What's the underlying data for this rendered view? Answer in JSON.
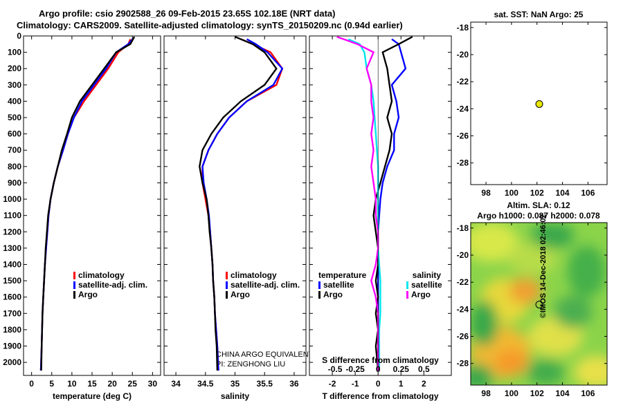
{
  "header": {
    "line1": "Argo profile: csio 2902588_26 09-Feb-2015 23.65S 102.18E (NRT data)",
    "line2": "Climatology: CARS2009. Satellite-adjusted climatology: synTS_20150209.nc (0.94d earlier)"
  },
  "colors": {
    "climatology": "#ff0000",
    "satellite": "#0000ff",
    "argo": "#000000",
    "sal_satellite": "#00e5ee",
    "sal_argo": "#ff00ff",
    "point": "#e8e800"
  },
  "chart_data": [
    {
      "type": "line",
      "id": "temperature",
      "xlabel": "temperature (deg C)",
      "ylabel": "",
      "xlim": [
        -2,
        32
      ],
      "ylim": [
        2080,
        0
      ],
      "xticks": [
        0,
        5,
        10,
        15,
        20,
        25,
        30
      ],
      "yticks": [
        0,
        100,
        200,
        300,
        400,
        500,
        600,
        700,
        800,
        900,
        1000,
        1100,
        1200,
        1300,
        1400,
        1500,
        1600,
        1700,
        1800,
        1900,
        2000
      ],
      "legend": [
        "climatology",
        "satellite-adj. clim.",
        "Argo"
      ],
      "series": [
        {
          "name": "climatology",
          "x": [
            24.5,
            24.0,
            21.5,
            19.0,
            16.0,
            13.0,
            10.5,
            9.0,
            7.8,
            6.5,
            5.5,
            4.7,
            4.2,
            3.9,
            3.6,
            3.3,
            3.1,
            2.9,
            2.7,
            2.6,
            2.5,
            2.3
          ],
          "y": [
            20,
            50,
            100,
            200,
            300,
            400,
            500,
            600,
            700,
            800,
            900,
            1000,
            1100,
            1200,
            1300,
            1400,
            1500,
            1600,
            1700,
            1800,
            1900,
            2050
          ]
        },
        {
          "name": "satellite-adj. clim.",
          "x": [
            25.0,
            24.0,
            21.0,
            18.5,
            15.5,
            12.5,
            10.5,
            9.0,
            7.8,
            6.5,
            5.5,
            4.7,
            4.2,
            3.9,
            3.6,
            3.3,
            3.1,
            2.9,
            2.7,
            2.6,
            2.5,
            2.3
          ],
          "y": [
            20,
            50,
            100,
            200,
            300,
            400,
            500,
            600,
            700,
            800,
            900,
            1000,
            1100,
            1200,
            1300,
            1400,
            1500,
            1600,
            1700,
            1800,
            1900,
            2050
          ]
        },
        {
          "name": "Argo",
          "x": [
            25.5,
            24.5,
            21.0,
            18.0,
            15.0,
            12.0,
            10.0,
            8.8,
            7.5,
            6.5,
            5.5,
            4.7,
            4.1,
            3.8,
            3.5,
            3.3,
            3.1,
            2.9,
            2.7,
            2.6,
            2.5,
            2.4
          ],
          "y": [
            5,
            50,
            100,
            200,
            300,
            400,
            500,
            600,
            700,
            800,
            900,
            1000,
            1100,
            1200,
            1300,
            1400,
            1500,
            1600,
            1700,
            1800,
            1900,
            2050
          ]
        }
      ]
    },
    {
      "type": "line",
      "id": "salinity",
      "xlabel": "salinity",
      "ylabel": "",
      "xlim": [
        33.8,
        36.2
      ],
      "ylim": [
        2080,
        0
      ],
      "xticks": [
        34,
        34.5,
        35,
        35.5,
        36
      ],
      "legend": [
        "climatology",
        "satellite-adj. clim.",
        "Argo"
      ],
      "annotations": [
        "CHINA ARGO EQUIVALENT",
        "PI: ZENGHONG LIU"
      ],
      "series": [
        {
          "name": "climatology",
          "x": [
            35.1,
            35.3,
            35.6,
            35.8,
            35.7,
            35.2,
            34.9,
            34.7,
            34.55,
            34.45,
            34.45,
            34.5,
            34.55,
            34.58,
            34.6,
            34.62,
            34.63,
            34.65,
            34.66,
            34.68,
            34.7,
            34.72
          ],
          "y": [
            20,
            50,
            100,
            200,
            300,
            400,
            500,
            600,
            700,
            800,
            900,
            1000,
            1100,
            1200,
            1300,
            1400,
            1500,
            1600,
            1700,
            1800,
            1900,
            2050
          ]
        },
        {
          "name": "satellite-adj. clim.",
          "x": [
            35.2,
            35.35,
            35.55,
            35.8,
            35.65,
            35.2,
            34.9,
            34.7,
            34.55,
            34.45,
            34.47,
            34.52,
            34.56,
            34.58,
            34.6,
            34.62,
            34.63,
            34.65,
            34.66,
            34.68,
            34.7,
            34.72
          ],
          "y": [
            20,
            50,
            100,
            200,
            300,
            400,
            500,
            600,
            700,
            800,
            900,
            1000,
            1100,
            1200,
            1300,
            1400,
            1500,
            1600,
            1700,
            1800,
            1900,
            2050
          ]
        },
        {
          "name": "Argo",
          "x": [
            35.0,
            35.3,
            35.5,
            35.7,
            35.5,
            35.1,
            34.8,
            34.6,
            34.45,
            34.4,
            34.45,
            34.52,
            34.55,
            34.57,
            34.6,
            34.62,
            34.63,
            34.65,
            34.66,
            34.67,
            34.69,
            34.7
          ],
          "y": [
            5,
            50,
            100,
            200,
            300,
            400,
            500,
            600,
            700,
            800,
            900,
            1000,
            1100,
            1200,
            1300,
            1400,
            1500,
            1600,
            1700,
            1800,
            1900,
            2050
          ]
        }
      ]
    },
    {
      "type": "line",
      "id": "difference",
      "xlabel": "T difference from climatology",
      "x2label": "S difference from climatology",
      "ylabel": "",
      "xlim": [
        -3,
        3.2
      ],
      "ylim": [
        2080,
        0
      ],
      "xticks": [
        -2,
        -1,
        0,
        1,
        2
      ],
      "x2ticks": [
        "-0.5",
        "-0.25",
        "0",
        "0.25",
        "0.5"
      ],
      "legend_groups": [
        {
          "title": "temperature",
          "items": [
            "satellite",
            "Argo"
          ]
        },
        {
          "title": "salinity",
          "items": [
            "satellite",
            "Argo"
          ]
        }
      ],
      "series": [
        {
          "name": "temperature satellite",
          "x": [
            0.6,
            0.9,
            1.0,
            1.2,
            0.6,
            0.8,
            0.9,
            0.7,
            0.7,
            0.4,
            0.2,
            0.1,
            0.05,
            0.0,
            0.0,
            0.0,
            0.0,
            0.0,
            0.0,
            0.0,
            0.0,
            0.0
          ],
          "y": [
            20,
            50,
            100,
            200,
            300,
            400,
            500,
            600,
            700,
            800,
            900,
            1000,
            1100,
            1200,
            1300,
            1400,
            1500,
            1600,
            1700,
            1800,
            1900,
            2050
          ]
        },
        {
          "name": "temperature Argo",
          "x": [
            1.5,
            0.9,
            0.2,
            0.4,
            0.5,
            0.6,
            0.4,
            0.6,
            0.5,
            0.3,
            0.1,
            -0.1,
            -0.2,
            -0.1,
            0.0,
            0.0,
            -0.1,
            0.0,
            -0.1,
            0.0,
            -0.1,
            0.0
          ],
          "y": [
            5,
            50,
            100,
            200,
            300,
            400,
            500,
            600,
            700,
            800,
            900,
            1000,
            1100,
            1200,
            1300,
            1400,
            1500,
            1600,
            1700,
            1800,
            1900,
            2050
          ]
        },
        {
          "name": "salinity satellite",
          "x": [
            -1.3,
            -0.8,
            -0.6,
            -0.5,
            -0.3,
            -0.2,
            -0.15,
            -0.1,
            -0.05,
            0.0,
            0.0,
            0.0,
            0.0,
            0.0,
            0.0,
            0.05,
            0.1,
            0.1,
            0.1,
            0.05,
            0.05,
            0.05
          ],
          "y": [
            20,
            50,
            100,
            200,
            300,
            400,
            500,
            600,
            700,
            800,
            900,
            1000,
            1100,
            1200,
            1300,
            1400,
            1500,
            1600,
            1700,
            1800,
            1900,
            2050
          ]
        },
        {
          "name": "salinity Argo",
          "x": [
            -1.8,
            -0.9,
            -0.2,
            -0.5,
            -0.3,
            -0.3,
            -0.2,
            -0.3,
            -0.2,
            -0.3,
            -0.2,
            -0.1,
            -0.1,
            0.0,
            0.0,
            -0.1,
            -0.3,
            -0.1,
            0.0,
            0.0,
            0.0,
            0.0
          ],
          "y": [
            5,
            50,
            100,
            200,
            300,
            400,
            500,
            600,
            700,
            800,
            900,
            1000,
            1100,
            1200,
            1300,
            1400,
            1500,
            1600,
            1700,
            1800,
            1900,
            2050
          ]
        }
      ]
    },
    {
      "type": "scatter",
      "id": "sst-map",
      "title": "sat. SST: NaN Argo: 25",
      "xlim": [
        96.8,
        107.5
      ],
      "ylim": [
        -29.6,
        -17.6
      ],
      "xticks": [
        98,
        100,
        102,
        104,
        106
      ],
      "yticks": [
        -18,
        -20,
        -22,
        -24,
        -26,
        -28
      ],
      "points": [
        {
          "x": 102.18,
          "y": -23.65
        }
      ]
    },
    {
      "type": "heatmap",
      "id": "sla-map",
      "title": "Altim. SLA: 0.12",
      "subtitle": "Argo h1000: 0.087 h2000: 0.078",
      "xlim": [
        96.8,
        107.5
      ],
      "ylim": [
        -29.6,
        -17.6
      ],
      "xticks": [
        98,
        100,
        102,
        104,
        106
      ],
      "yticks": [
        -18,
        -20,
        -22,
        -24,
        -26,
        -28
      ],
      "points": [
        {
          "x": 102.18,
          "y": -23.65
        }
      ]
    }
  ],
  "footer": {
    "credit": "©IMOS 14-Dec-2018 02:46:02"
  }
}
